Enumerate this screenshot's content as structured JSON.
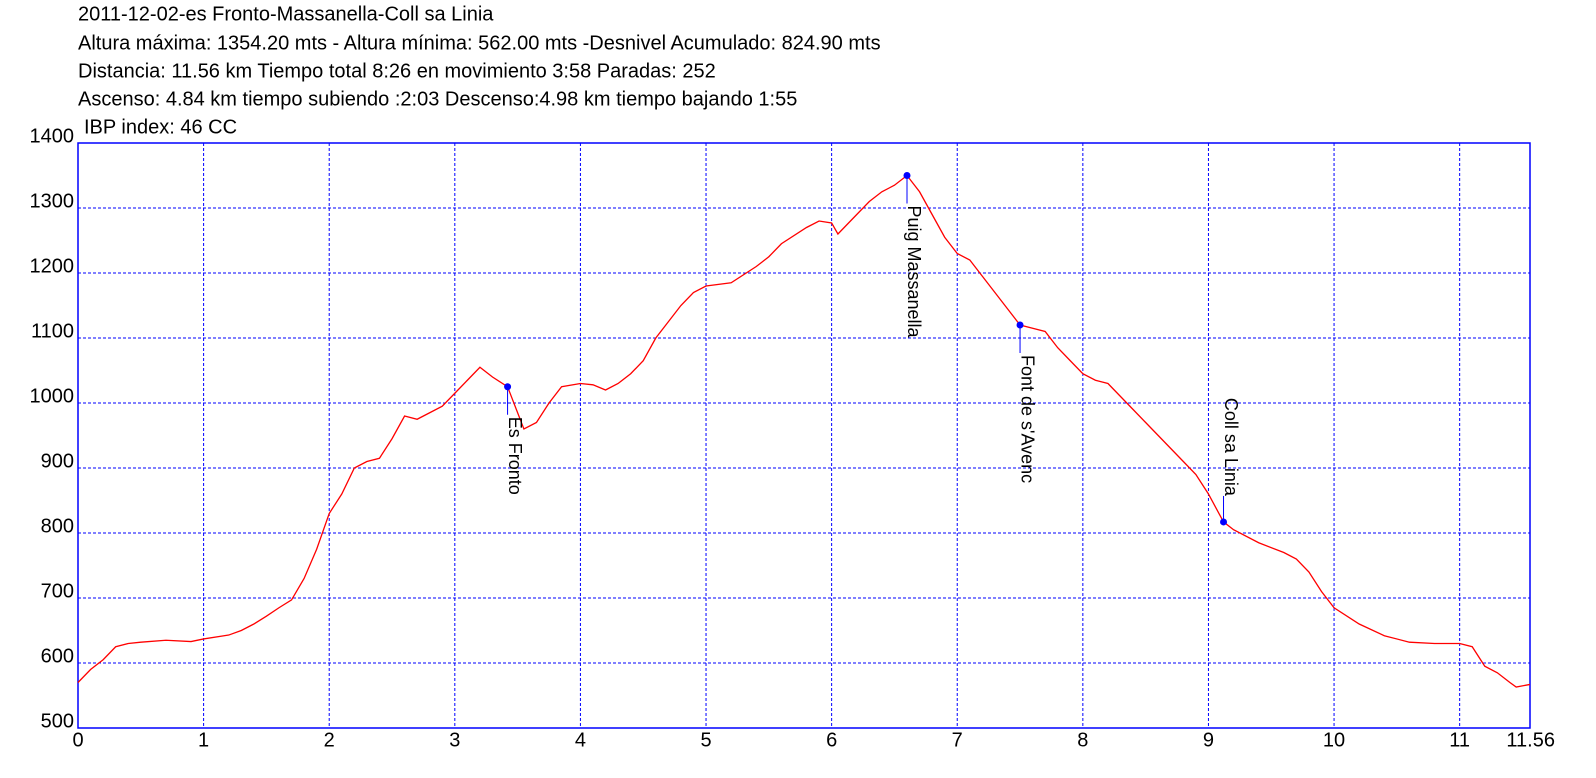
{
  "chart_data": {
    "type": "line",
    "title": "2011-12-02-es Fronto-Massanella-Coll sa Linia",
    "annotations": [
      "Altura máxima: 1354.20 mts - Altura mínima: 562.00 mts -Desnivel Acumulado: 824.90 mts",
      "Distancia: 11.56 km  Tiempo total 8:26  en movimiento 3:58 Paradas: 252",
      "Ascenso: 4.84 km  tiempo subiendo :2:03  Descenso:4.98 km tiempo bajando 1:55",
      "IBP index: 46 CC"
    ],
    "xlim": [
      0,
      11.56
    ],
    "xticks": [
      0,
      1,
      2,
      3,
      4,
      5,
      6,
      7,
      8,
      9,
      10,
      11,
      11.56
    ],
    "ylim": [
      500,
      1400
    ],
    "yticks": [
      500,
      600,
      700,
      800,
      900,
      1000,
      1100,
      1200,
      1300,
      1400
    ],
    "grid": true,
    "grid_color": "#0000ff",
    "axis_color": "#0000ff",
    "series": [
      {
        "color": "#ff0000",
        "x": [
          0,
          0.1,
          0.2,
          0.3,
          0.4,
          0.5,
          0.7,
          0.9,
          1.0,
          1.2,
          1.3,
          1.4,
          1.5,
          1.6,
          1.7,
          1.8,
          1.9,
          2.0,
          2.1,
          2.2,
          2.3,
          2.4,
          2.5,
          2.6,
          2.7,
          2.8,
          2.9,
          3.0,
          3.1,
          3.2,
          3.3,
          3.42,
          3.5,
          3.55,
          3.65,
          3.75,
          3.85,
          4.0,
          4.1,
          4.2,
          4.3,
          4.4,
          4.5,
          4.6,
          4.7,
          4.8,
          4.9,
          5.0,
          5.2,
          5.4,
          5.5,
          5.6,
          5.8,
          5.9,
          6.0,
          6.05,
          6.1,
          6.2,
          6.3,
          6.4,
          6.5,
          6.6,
          6.7,
          6.8,
          6.9,
          7.0,
          7.1,
          7.2,
          7.3,
          7.4,
          7.5,
          7.6,
          7.7,
          7.8,
          7.9,
          8.0,
          8.1,
          8.2,
          8.3,
          8.4,
          8.5,
          8.6,
          8.7,
          8.8,
          8.9,
          9.0,
          9.12,
          9.2,
          9.4,
          9.6,
          9.7,
          9.8,
          9.9,
          10.0,
          10.2,
          10.4,
          10.6,
          10.8,
          11.0,
          11.1,
          11.2,
          11.3,
          11.4,
          11.45,
          11.56
        ],
        "values": [
          570,
          590,
          605,
          625,
          630,
          632,
          635,
          633,
          637,
          643,
          650,
          660,
          672,
          685,
          697,
          730,
          775,
          830,
          860,
          900,
          910,
          915,
          945,
          980,
          975,
          985,
          995,
          1015,
          1035,
          1055,
          1040,
          1025,
          985,
          960,
          970,
          1000,
          1025,
          1030,
          1028,
          1020,
          1030,
          1045,
          1065,
          1100,
          1125,
          1150,
          1170,
          1180,
          1185,
          1210,
          1225,
          1245,
          1270,
          1280,
          1277,
          1260,
          1270,
          1290,
          1310,
          1325,
          1335,
          1350,
          1325,
          1290,
          1255,
          1230,
          1220,
          1195,
          1170,
          1145,
          1120,
          1115,
          1110,
          1085,
          1065,
          1045,
          1035,
          1030,
          1010,
          990,
          970,
          950,
          930,
          910,
          890,
          860,
          817,
          805,
          785,
          770,
          760,
          740,
          710,
          685,
          660,
          642,
          632,
          630,
          630,
          625,
          595,
          585,
          570,
          563,
          567
        ]
      }
    ],
    "waypoints": [
      {
        "label": "Es Fronto",
        "x": 3.42,
        "y": 1025,
        "color": "#0000ff"
      },
      {
        "label": "Puig Massanella",
        "x": 6.6,
        "y": 1350,
        "color": "#0000ff"
      },
      {
        "label": "Font de s'Avenc",
        "x": 7.5,
        "y": 1120,
        "color": "#0000ff"
      },
      {
        "label": "Coll sa Linia",
        "x": 9.12,
        "y": 817,
        "color": "#0000ff"
      }
    ]
  }
}
